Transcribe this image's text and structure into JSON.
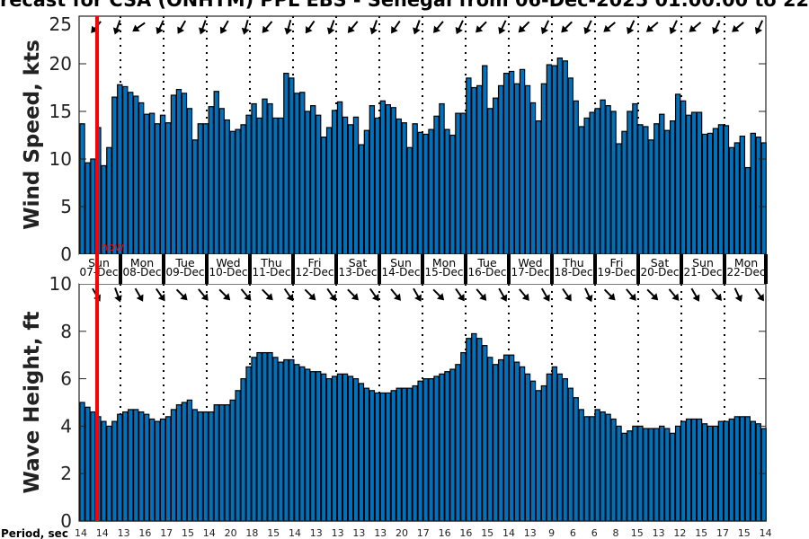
{
  "chart_data": [
    {
      "type": "bar",
      "title": "recast for CSA (ONHTM) PPL EBS  - Senegal from 06-Dec-2025 01:00:00 to 22",
      "ylabel": "Wind Speed, kts",
      "ylim": [
        0,
        25
      ],
      "yticks": [
        0,
        5,
        10,
        15,
        20,
        25
      ],
      "interval_hours": 3,
      "values": [
        13.7,
        9.6,
        10.0,
        13.3,
        9.3,
        11.2,
        16.5,
        17.8,
        17.6,
        17.0,
        16.6,
        15.9,
        14.7,
        14.8,
        13.7,
        14.6,
        13.8,
        16.7,
        17.3,
        16.9,
        15.3,
        12.0,
        13.7,
        13.7,
        15.5,
        17.1,
        15.3,
        14.1,
        12.9,
        13.1,
        13.6,
        14.6,
        15.8,
        14.3,
        16.3,
        15.8,
        14.3,
        14.3,
        19.0,
        18.5,
        16.9,
        17.0,
        15.0,
        15.6,
        14.6,
        12.3,
        13.3,
        15.1,
        16.0,
        14.4,
        13.6,
        14.4,
        11.5,
        13.0,
        15.6,
        14.3,
        16.1,
        15.7,
        15.4,
        14.2,
        13.8,
        11.2,
        13.7,
        12.8,
        12.6,
        13.1,
        14.5,
        15.8,
        13.1,
        12.5,
        14.8,
        14.8,
        18.5,
        17.5,
        17.7,
        19.8,
        15.3,
        16.4,
        17.7,
        19.0,
        19.2,
        17.9,
        19.4,
        17.7,
        15.9,
        14.0,
        17.9,
        19.9,
        19.8,
        20.6,
        20.3,
        18.5,
        16.1,
        13.4,
        14.3,
        14.9,
        15.3,
        16.2,
        15.6,
        15.0,
        11.6,
        12.9,
        15.0,
        15.8,
        13.6,
        13.4,
        12.0,
        13.7,
        14.7,
        13.0,
        14.0,
        16.8,
        16.1,
        14.6,
        14.9,
        14.9,
        12.6,
        12.7,
        13.2,
        13.6,
        13.5,
        11.2,
        11.7,
        12.4,
        9.1,
        12.7,
        12.3,
        11.7
      ],
      "arrow_direction_deg": [
        220,
        200,
        235,
        205,
        210,
        200,
        210,
        195,
        220,
        195,
        215,
        200,
        220,
        200,
        215,
        200,
        220,
        205,
        225,
        205,
        225,
        205,
        225,
        205,
        230,
        205,
        230,
        205,
        230,
        205,
        230,
        205
      ]
    },
    {
      "type": "bar",
      "ylabel": "Wave Height, ft",
      "ylim": [
        0,
        10
      ],
      "yticks": [
        0,
        2,
        4,
        6,
        8,
        10
      ],
      "interval_hours": 3,
      "values": [
        5.0,
        4.8,
        4.6,
        4.4,
        4.2,
        4.0,
        4.2,
        4.5,
        4.6,
        4.7,
        4.7,
        4.6,
        4.5,
        4.3,
        4.2,
        4.3,
        4.4,
        4.7,
        4.9,
        5.0,
        5.1,
        4.7,
        4.6,
        4.6,
        4.6,
        4.9,
        4.9,
        4.9,
        5.1,
        5.5,
        6.0,
        6.5,
        6.9,
        7.1,
        7.1,
        7.1,
        6.9,
        6.7,
        6.8,
        6.8,
        6.6,
        6.5,
        6.4,
        6.3,
        6.3,
        6.2,
        6.0,
        6.1,
        6.2,
        6.2,
        6.1,
        6.0,
        5.8,
        5.6,
        5.5,
        5.4,
        5.4,
        5.4,
        5.5,
        5.6,
        5.6,
        5.6,
        5.7,
        5.9,
        6.0,
        6.0,
        6.1,
        6.2,
        6.3,
        6.4,
        6.6,
        7.1,
        7.7,
        7.9,
        7.7,
        7.4,
        6.9,
        6.6,
        6.8,
        7.0,
        7.0,
        6.7,
        6.5,
        6.2,
        5.9,
        5.5,
        5.7,
        6.2,
        6.5,
        6.2,
        6.0,
        5.6,
        5.2,
        4.7,
        4.4,
        4.4,
        4.7,
        4.6,
        4.5,
        4.3,
        4.0,
        3.7,
        3.8,
        4.0,
        4.0,
        3.9,
        3.9,
        3.9,
        4.0,
        3.9,
        3.7,
        4.0,
        4.2,
        4.3,
        4.3,
        4.3,
        4.1,
        4.0,
        4.0,
        4.2,
        4.2,
        4.3,
        4.4,
        4.4,
        4.4,
        4.2,
        4.1,
        3.9
      ],
      "arrow_direction_deg": [
        150,
        160,
        150,
        145,
        135,
        140,
        135,
        140,
        135,
        145,
        135,
        145,
        135,
        145,
        140,
        150,
        135,
        145,
        140,
        150,
        140,
        150,
        145,
        155,
        135,
        140,
        135,
        140,
        150,
        140,
        155,
        145
      ]
    }
  ],
  "days": [
    {
      "name": "Sun",
      "date": "07-Dec"
    },
    {
      "name": "Mon",
      "date": "08-Dec"
    },
    {
      "name": "Tue",
      "date": "09-Dec"
    },
    {
      "name": "Wed",
      "date": "10-Dec"
    },
    {
      "name": "Thu",
      "date": "11-Dec"
    },
    {
      "name": "Fri",
      "date": "12-Dec"
    },
    {
      "name": "Sat",
      "date": "13-Dec"
    },
    {
      "name": "Sun",
      "date": "14-Dec"
    },
    {
      "name": "Mon",
      "date": "15-Dec"
    },
    {
      "name": "Tue",
      "date": "16-Dec"
    },
    {
      "name": "Wed",
      "date": "17-Dec"
    },
    {
      "name": "Thu",
      "date": "18-Dec"
    },
    {
      "name": "Fri",
      "date": "19-Dec"
    },
    {
      "name": "Sat",
      "date": "20-Dec"
    },
    {
      "name": "Sun",
      "date": "21-Dec"
    },
    {
      "name": "Mon",
      "date": "22-Dec"
    }
  ],
  "now_label": "now",
  "period": {
    "label": "Period, sec",
    "values": [
      14,
      14,
      13,
      16,
      17,
      15,
      14,
      20,
      18,
      15,
      14,
      13,
      13,
      13,
      13,
      20,
      17,
      16,
      16,
      15,
      14,
      13,
      9,
      6,
      6,
      8,
      15,
      13,
      12,
      15,
      17,
      15,
      14
    ]
  },
  "colors": {
    "bar": "#0072bd",
    "now_line": "#ff0000",
    "axis": "#222222"
  }
}
